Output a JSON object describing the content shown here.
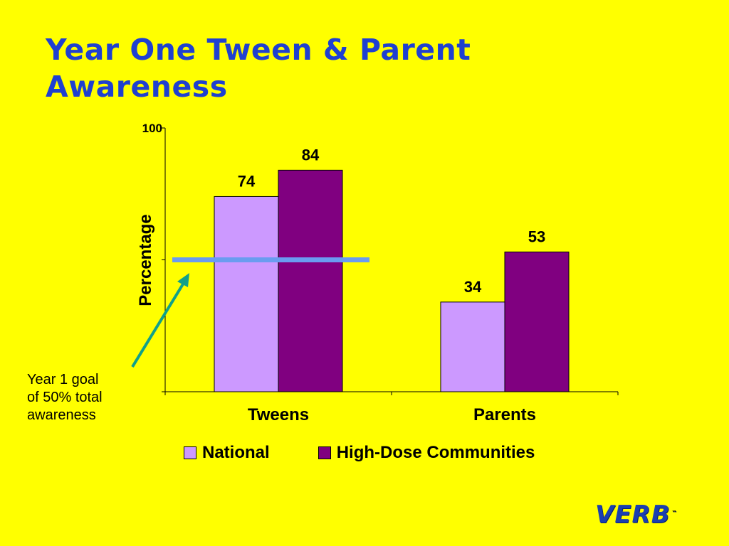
{
  "slide": {
    "title_lines": [
      "Year One Tween & Parent",
      "Awareness"
    ],
    "annotation_lines": [
      "Year 1 goal",
      "of 50% total",
      "awareness"
    ],
    "logo_text": "VERB",
    "logo_mark": "™"
  },
  "colors": {
    "background": "#FFFF00",
    "title": "#1F40D0",
    "goal_line": "#6A9CF0",
    "arrow": "#10A08A"
  },
  "chart_data": {
    "type": "bar",
    "categories": [
      "Tweens",
      "Parents"
    ],
    "series": [
      {
        "name": "National",
        "values": [
          74,
          34
        ],
        "color": "#CC99FF"
      },
      {
        "name": "High-Dose Communities",
        "values": [
          84,
          53
        ],
        "color": "#800080"
      }
    ],
    "ylabel": "Percentage",
    "ylim": [
      0,
      100
    ],
    "yticks": [
      {
        "value": 100,
        "label": "100"
      }
    ],
    "goal_value": 50,
    "legend_position": "bottom",
    "grid": false
  }
}
